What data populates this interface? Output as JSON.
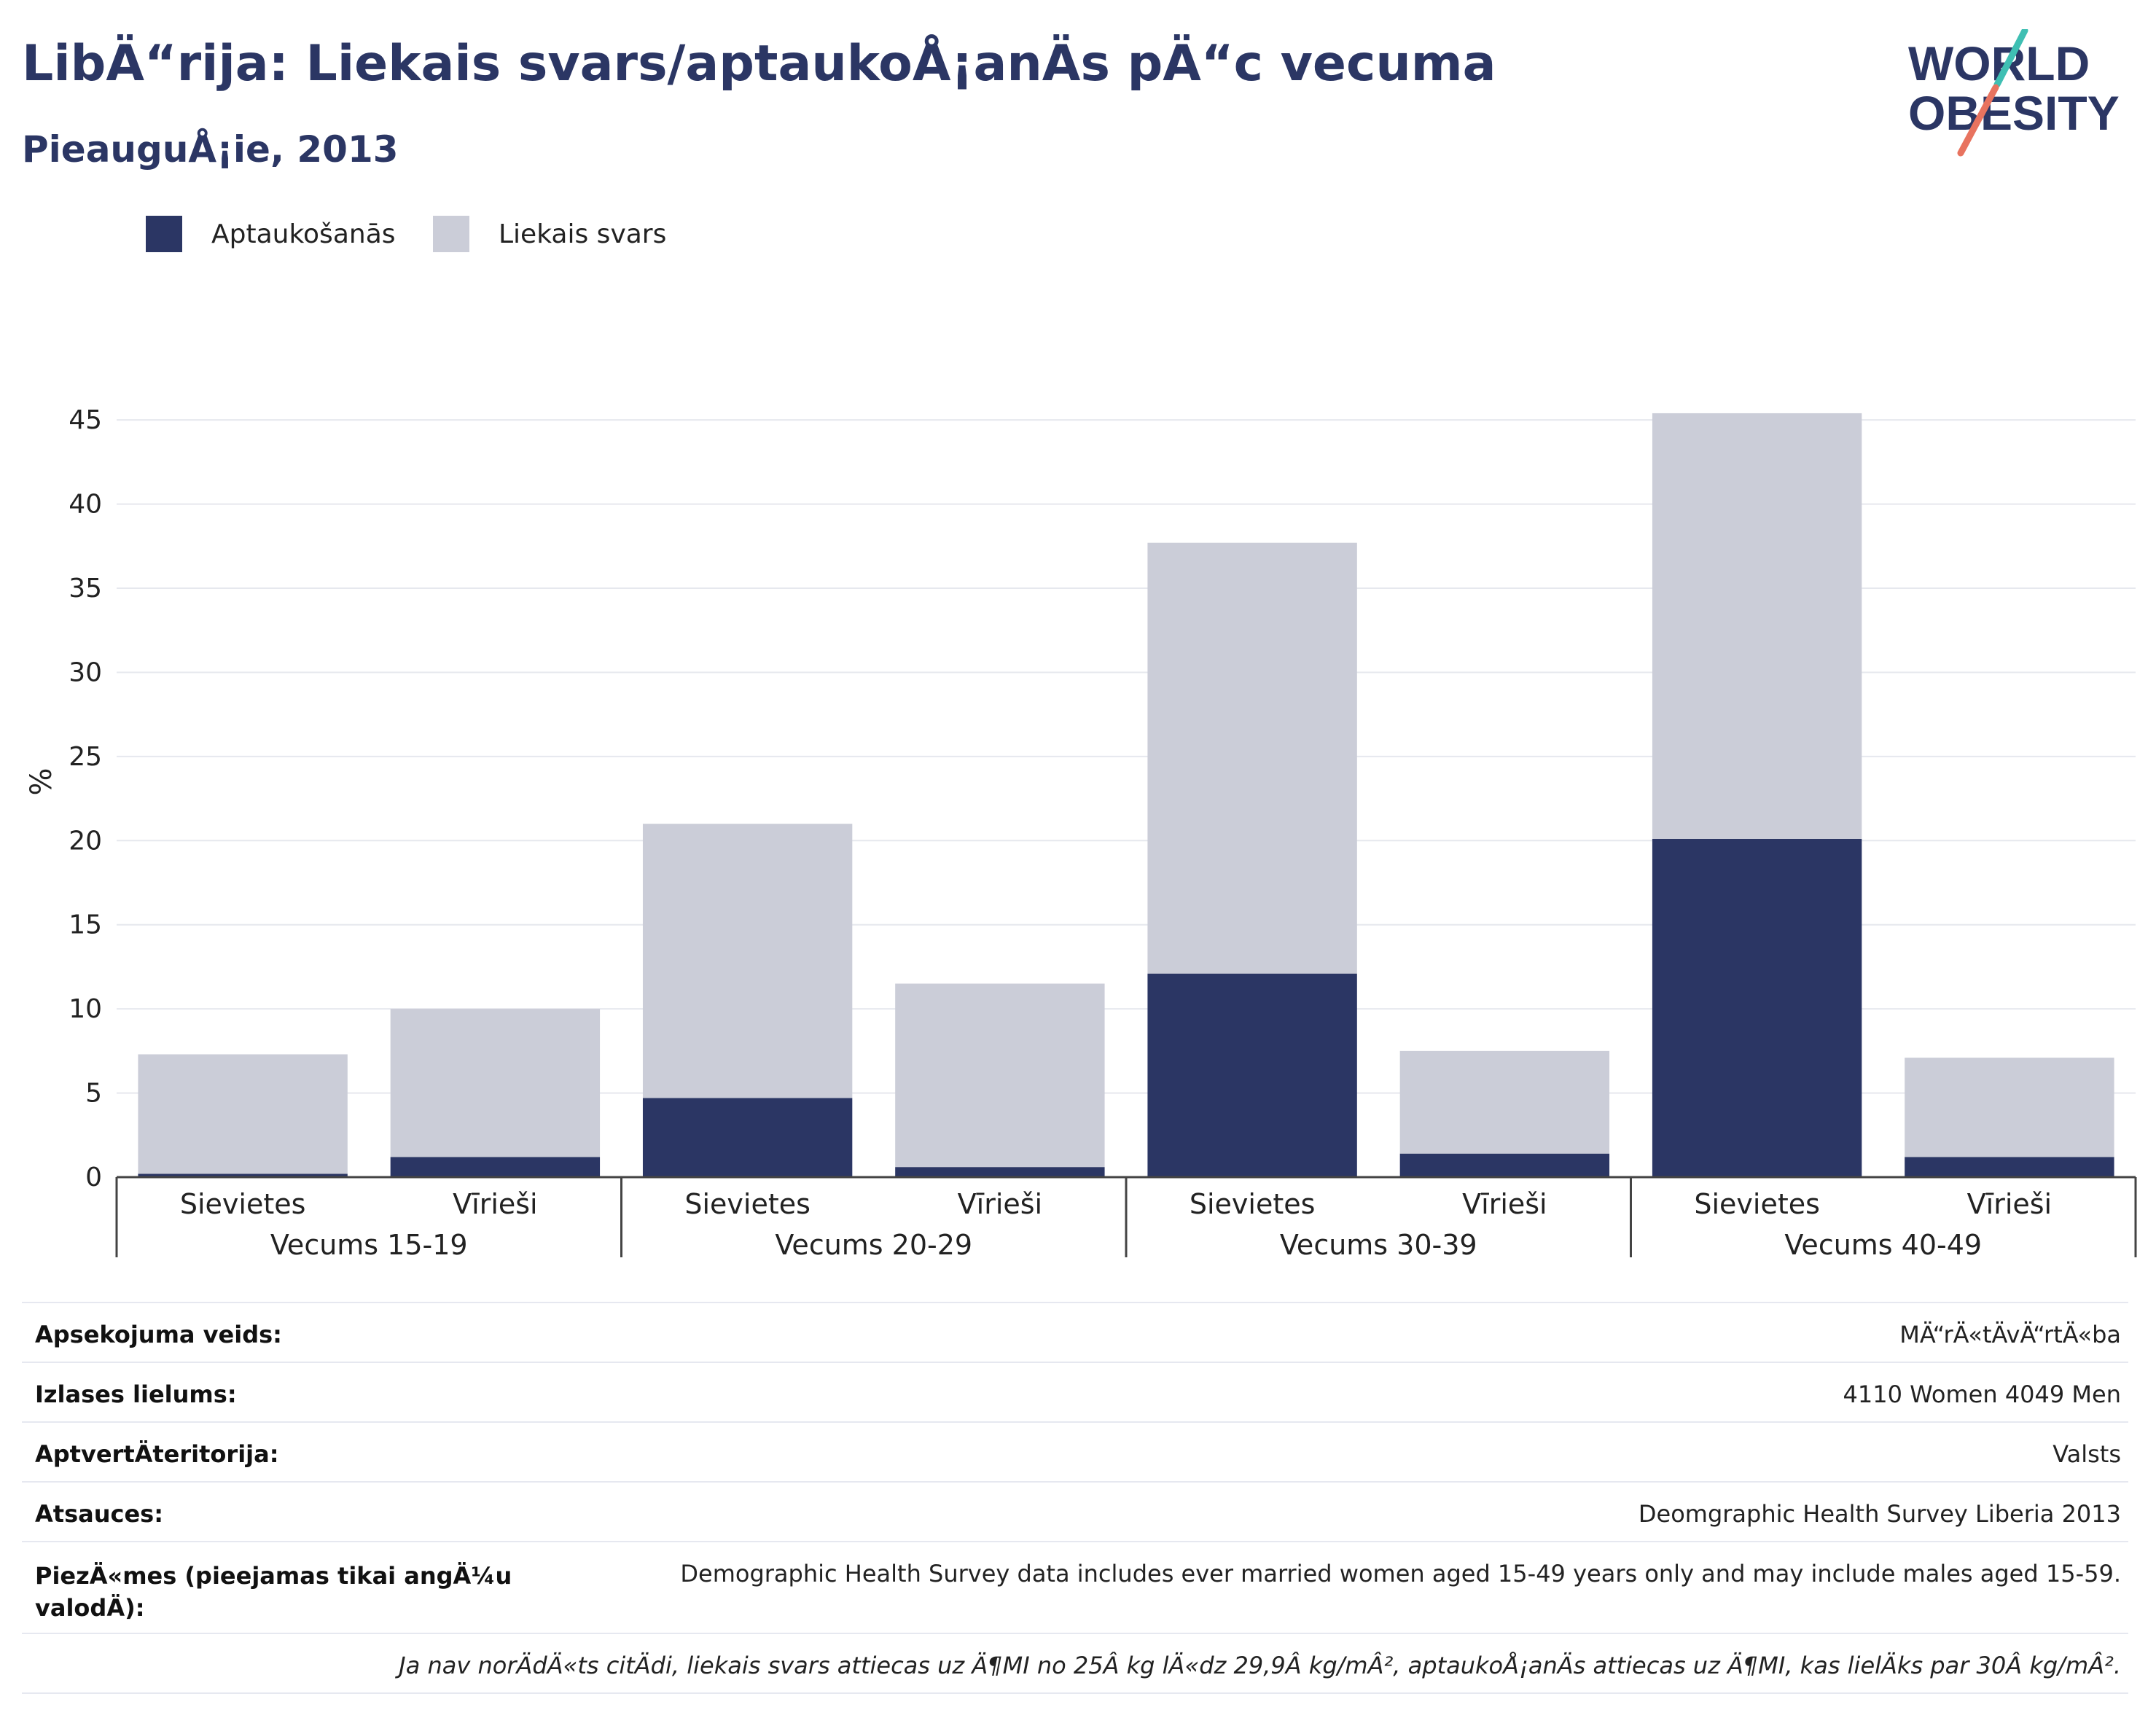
{
  "header": {
    "title": "LibÄ“rija: Liekais svars/aptaukoÅ¡anÄs pÄ“c vecuma",
    "subtitle": "PieauguÅ¡ie, 2013",
    "logo_text_line1": "WORLD",
    "logo_text_line2": "OBESITY"
  },
  "colors": {
    "obesity": "#2b3664",
    "overweight": "#cbcdd8",
    "brand_teal": "#3fbfb3",
    "brand_coral": "#e8735f"
  },
  "legend": {
    "items": [
      {
        "label": "Aptaukošanās",
        "color": "#2b3664"
      },
      {
        "label": "Liekais svars",
        "color": "#cbcdd8"
      }
    ]
  },
  "chart_data": {
    "type": "bar",
    "stacked": true,
    "ylabel": "%",
    "ylim": [
      0,
      47
    ],
    "yticks": [
      0,
      5,
      10,
      15,
      20,
      25,
      30,
      35,
      40,
      45
    ],
    "grid": true,
    "legend_position": "top-left",
    "groups": [
      "Vecums 15-19",
      "Vecums 20-29",
      "Vecums 30-39",
      "Vecums 40-49"
    ],
    "categories": [
      "Sievietes",
      "Vīrieši",
      "Sievietes",
      "Vīrieši",
      "Sievietes",
      "Vīrieši",
      "Sievietes",
      "Vīrieši"
    ],
    "series": [
      {
        "name": "Aptaukošanās",
        "values": [
          0.2,
          1.2,
          4.7,
          0.6,
          12.1,
          1.4,
          20.1,
          1.2
        ]
      },
      {
        "name": "Liekais svars",
        "values": [
          7.1,
          8.8,
          16.3,
          10.9,
          25.6,
          6.1,
          25.3,
          5.9
        ]
      }
    ]
  },
  "meta": {
    "rows": [
      {
        "label": "Apsekojuma veids:",
        "value": "MÄ“rÄ«tÄvÄ“rtÄ«ba"
      },
      {
        "label": "Izlases lielums:",
        "value": "4110 Women 4049 Men"
      },
      {
        "label": "AptvertÄteritorija:",
        "value": "Valsts"
      },
      {
        "label": "Atsauces:",
        "value": "Deomgraphic Health Survey Liberia 2013"
      },
      {
        "label": "PiezÄ«mes (pieejamas tikai angÄ¼u valodÄ):",
        "value": "Demographic Health Survey data includes ever married women aged 15-49 years only and may include males aged 15-59."
      }
    ],
    "footnote": "Ja nav norÄdÄ«ts citÄdi, liekais svars attiecas uz Ä¶MI no 25Â kg lÄ«dz 29,9Â kg/mÂ², aptaukoÅ¡anÄs attiecas uz Ä¶MI, kas lielÄks par 30Â kg/mÂ²."
  }
}
